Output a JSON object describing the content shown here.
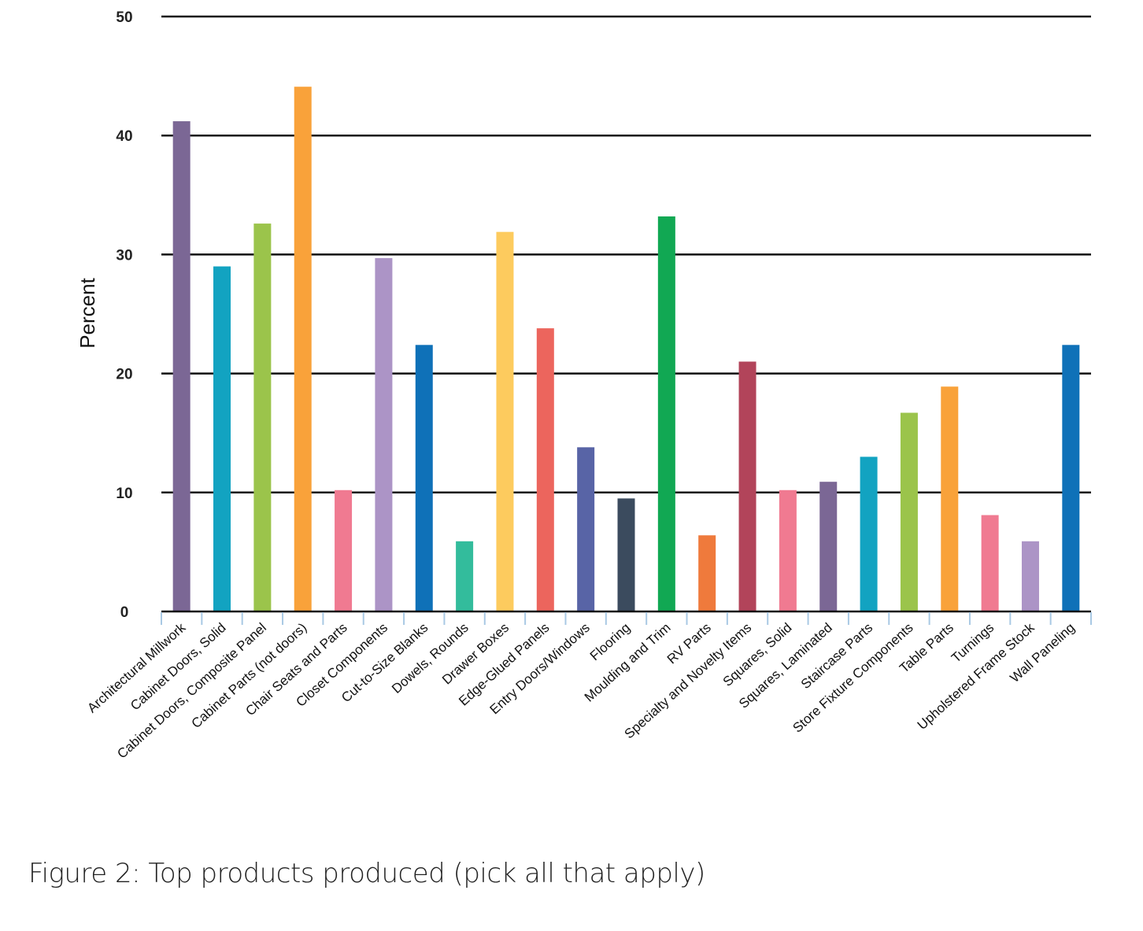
{
  "caption": "Figure 2: Top products produced (pick all that apply)",
  "chart_data": {
    "type": "bar",
    "ylabel": "Percent",
    "xlabel": "",
    "ylim": [
      0,
      50
    ],
    "yticks": [
      0,
      10,
      20,
      30,
      40,
      50
    ],
    "grid": true,
    "categories": [
      "Architectural Millwork",
      "Cabinet Doors, Solid",
      "Cabinet Doors, Composite Panel",
      "Cabinet Parts (not doors)",
      "Chair Seats and Parts",
      "Closet Components",
      "Cut-to-Size Blanks",
      "Dowels, Rounds",
      "Drawer Boxes",
      "Edge-Glued Panels",
      "Entry Doors/Windows",
      "Flooring",
      "Moulding and Trim",
      "RV Parts",
      "Specialty and Novelty Items",
      "Squares, Solid",
      "Squares, Laminated",
      "Staircase Parts",
      "Store Fixture Components",
      "Table Parts",
      "Turnings",
      "Upholstered Frame Stock",
      "Wall Paneling"
    ],
    "values": [
      41.2,
      29.0,
      32.6,
      44.1,
      10.2,
      29.7,
      22.4,
      5.9,
      31.9,
      23.8,
      13.8,
      9.5,
      33.2,
      6.4,
      21.0,
      10.2,
      10.9,
      13.0,
      16.7,
      18.9,
      8.1,
      5.9,
      22.4
    ],
    "colors": [
      "#7b6795",
      "#12a3c1",
      "#9bc44b",
      "#f9a23a",
      "#f07a91",
      "#ac94c6",
      "#0f71b8",
      "#33bc9c",
      "#fdcb5e",
      "#ec655d",
      "#5864a6",
      "#3b4b5e",
      "#11a853",
      "#ef7a3c",
      "#b2445a",
      "#f07a91",
      "#7b6795",
      "#12a3c1",
      "#9bc44b",
      "#f9a23a",
      "#f07a91",
      "#ac94c6",
      "#0f71b8"
    ]
  }
}
